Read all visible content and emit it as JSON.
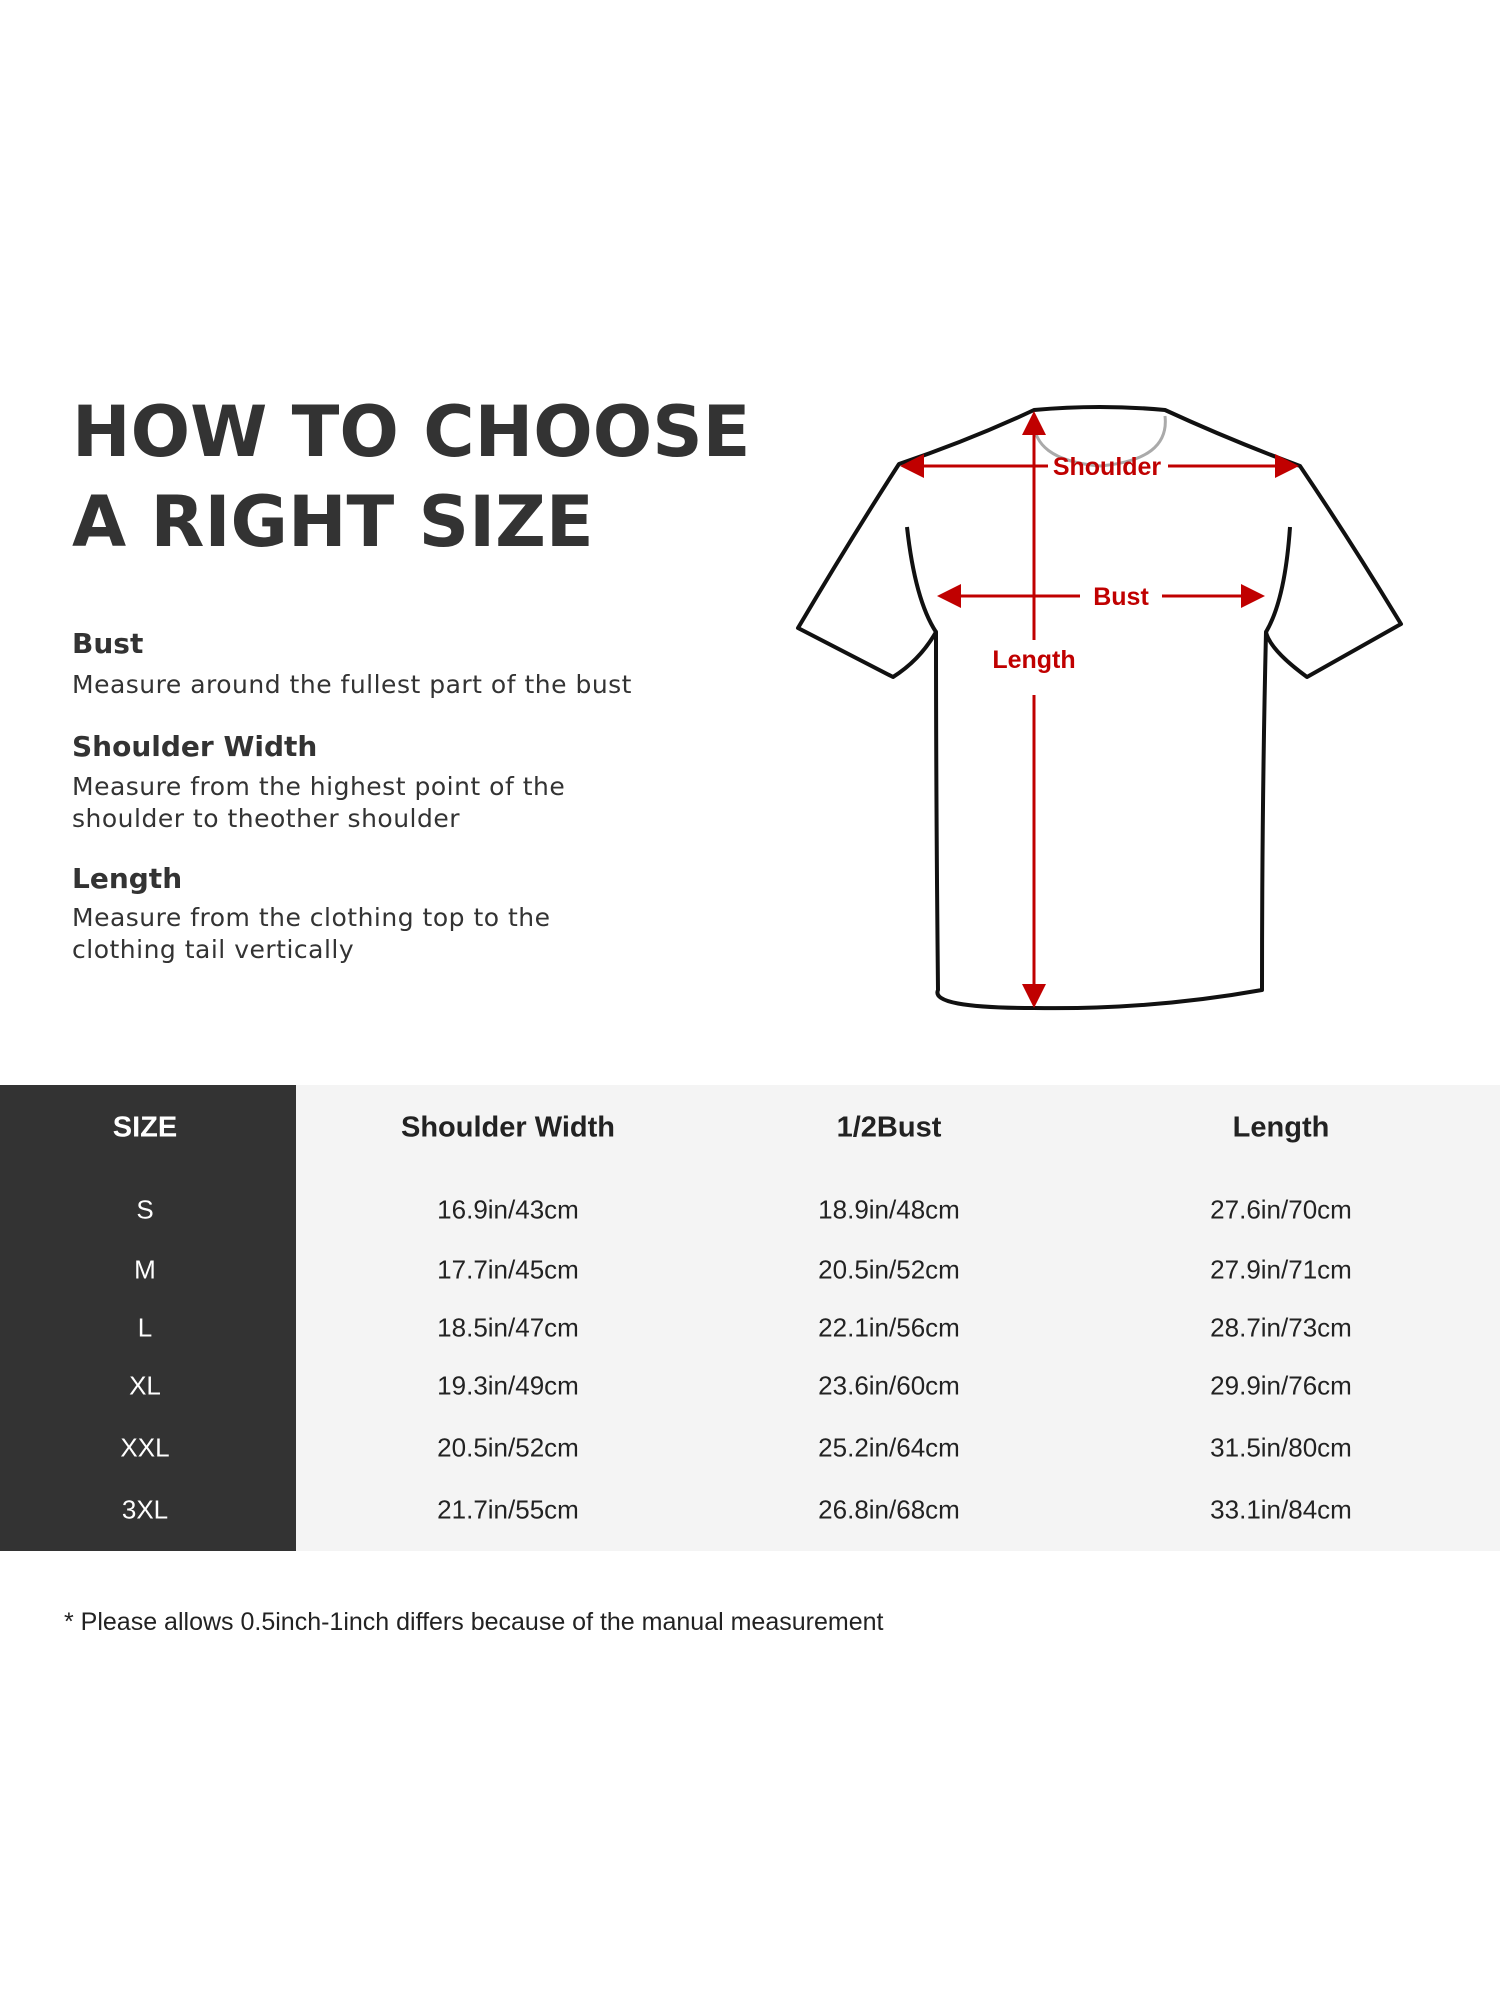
{
  "title": {
    "line1": "HOW TO CHOOSE",
    "line2": "A RIGHT SIZE"
  },
  "guides": [
    {
      "label": "Bust",
      "desc": [
        "Measure around the fullest part of the bust"
      ]
    },
    {
      "label": "Shoulder Width",
      "desc": [
        "Measure from the highest point of the",
        "shoulder to theother shoulder"
      ]
    },
    {
      "label": "Length",
      "desc": [
        "Measure from the clothing top to the",
        "clothing tail vertically"
      ]
    }
  ],
  "diagram": {
    "shoulder": "Shoulder",
    "bust": "Bust",
    "length": "Length",
    "arrow_color": "#c00000",
    "outline_color": "#111111"
  },
  "table": {
    "headers": [
      "SIZE",
      "Shoulder Width",
      "1/2Bust",
      "Length"
    ],
    "rows": [
      [
        "S",
        "16.9in/43cm",
        "18.9in/48cm",
        "27.6in/70cm"
      ],
      [
        "M",
        "17.7in/45cm",
        "20.5in/52cm",
        "27.9in/71cm"
      ],
      [
        "L",
        "18.5in/47cm",
        "22.1in/56cm",
        "28.7in/73cm"
      ],
      [
        "XL",
        "19.3in/49cm",
        "23.6in/60cm",
        "29.9in/76cm"
      ],
      [
        "XXL",
        "20.5in/52cm",
        "25.2in/64cm",
        "31.5in/80cm"
      ],
      [
        "3XL",
        "21.7in/55cm",
        "26.8in/68cm",
        "33.1in/84cm"
      ]
    ]
  },
  "footnote": "* Please allows 0.5inch-1inch differs because of the  manual measurement"
}
